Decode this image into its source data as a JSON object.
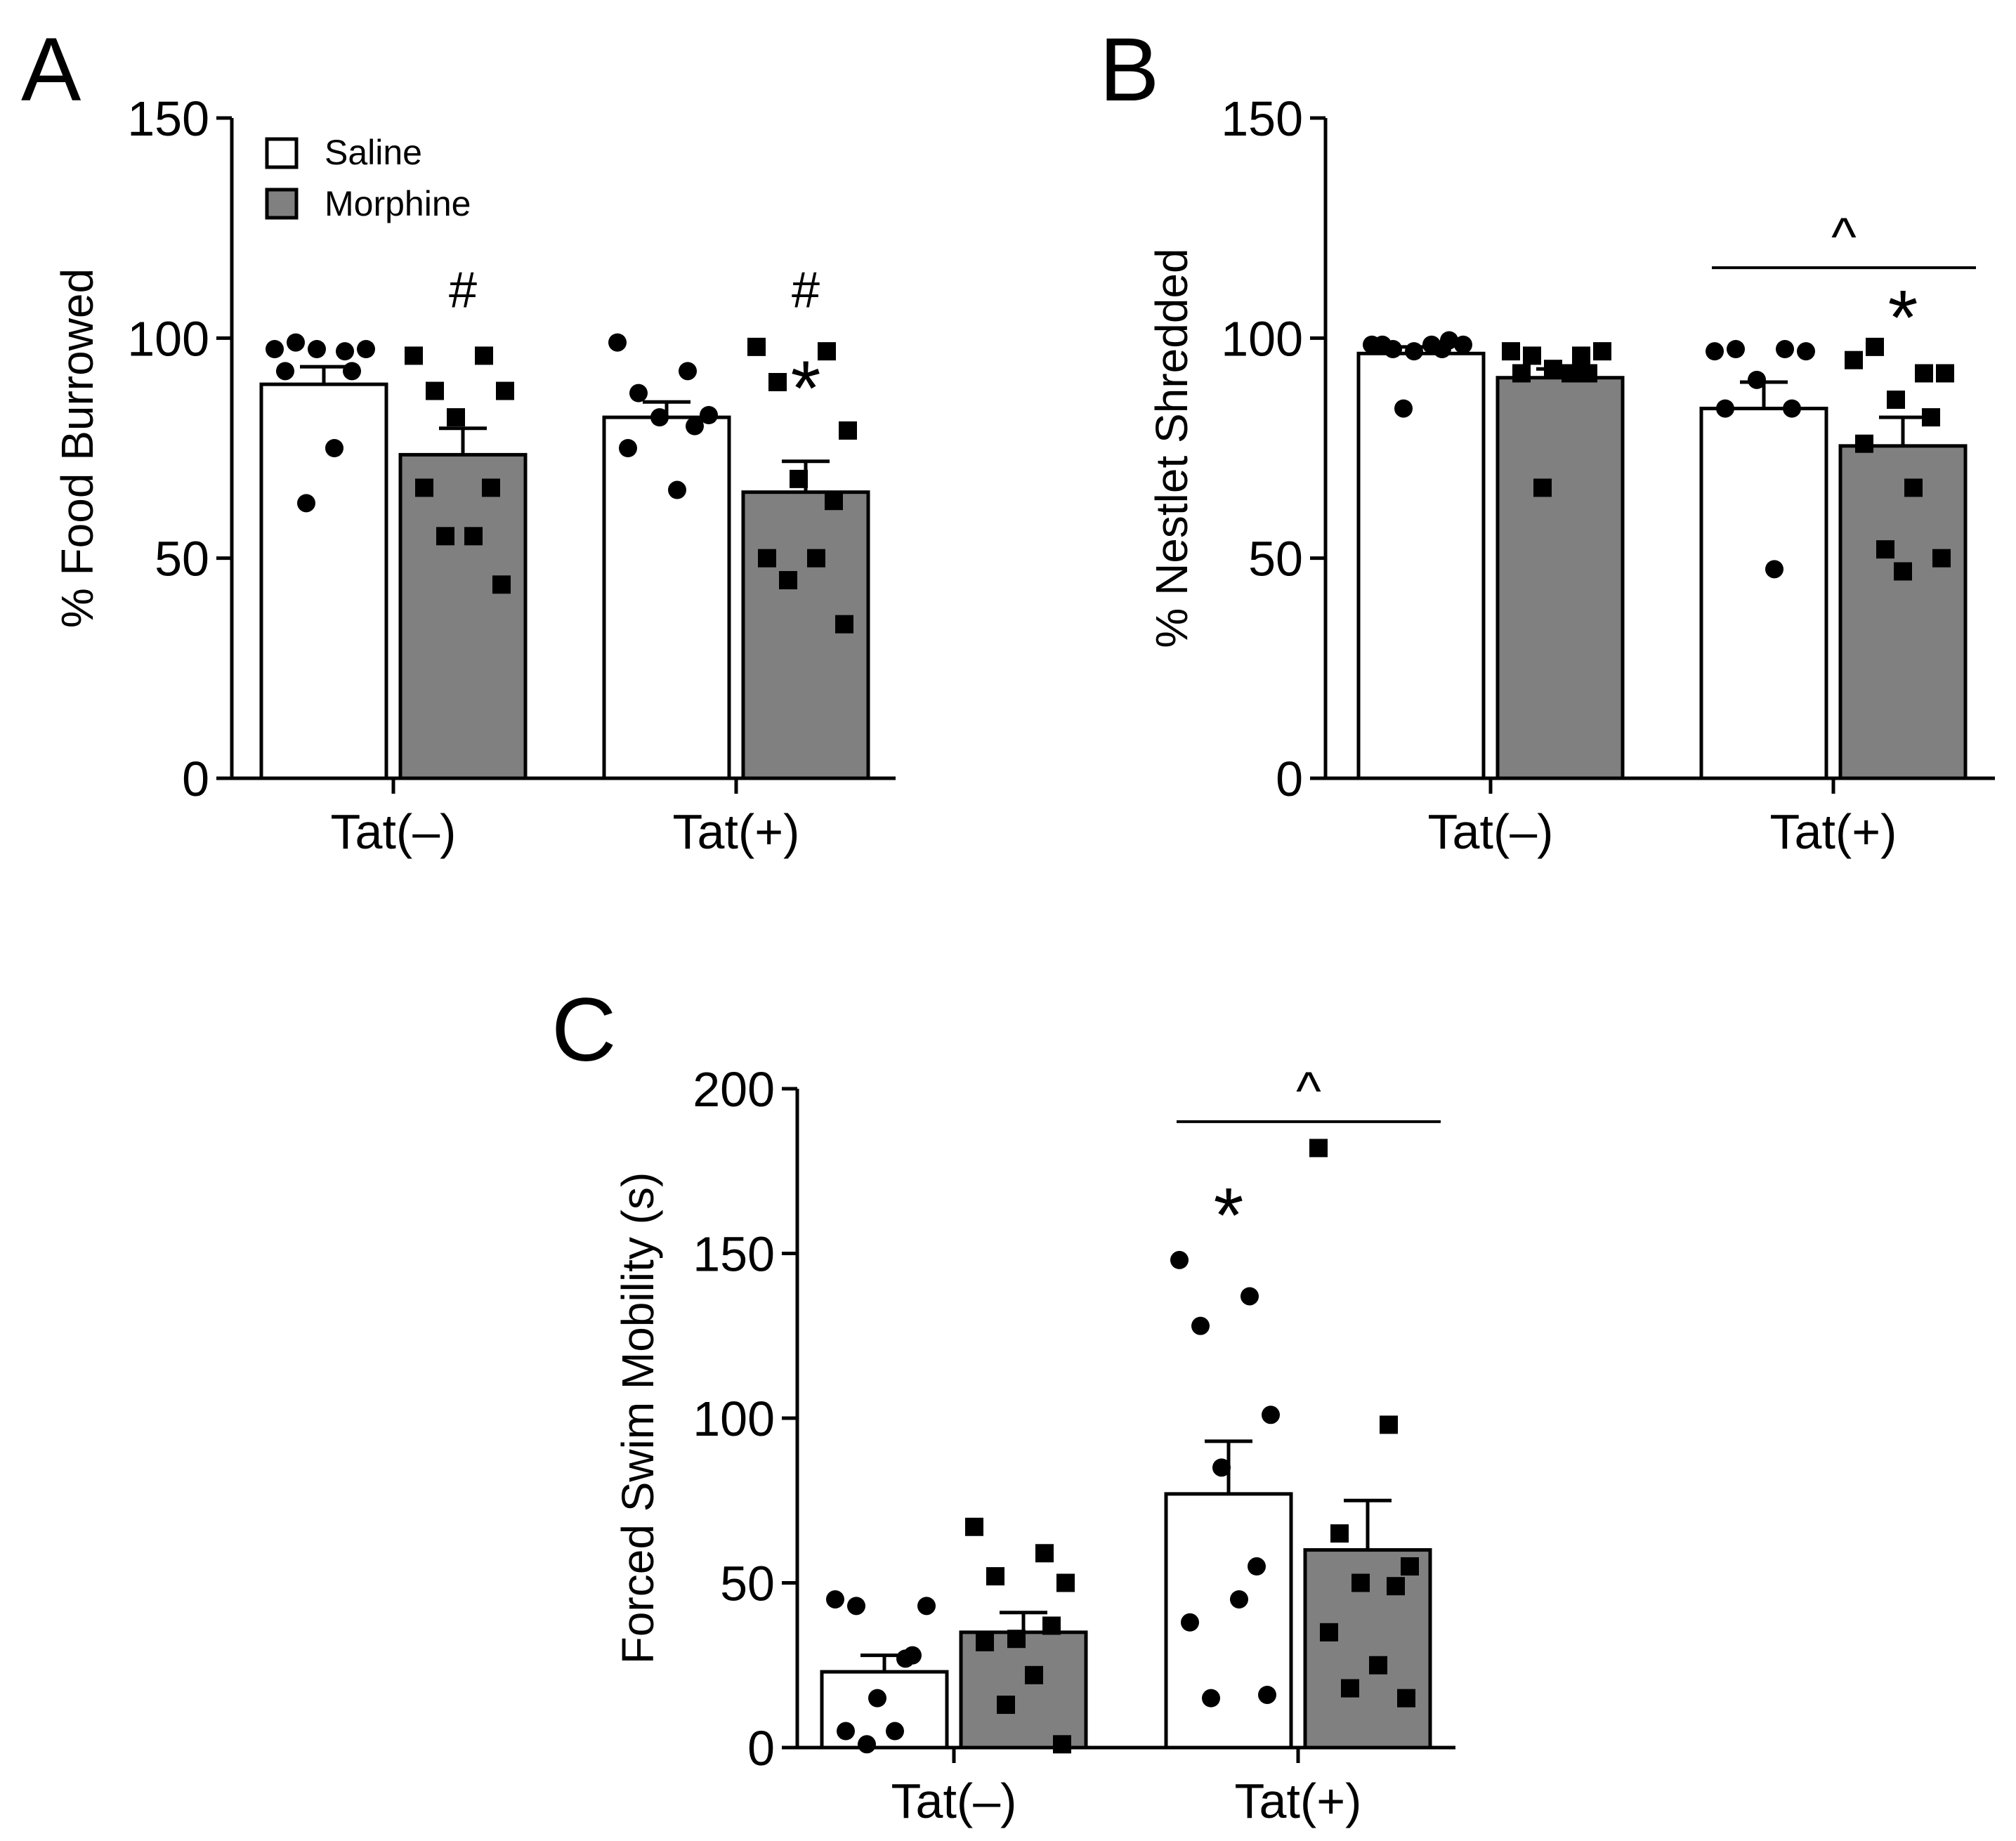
{
  "figure": {
    "legend": {
      "items": [
        {
          "label": "Saline",
          "color": "#ffffff"
        },
        {
          "label": "Morphine",
          "color": "#808080"
        }
      ]
    }
  },
  "chart_data": [
    {
      "id": "A",
      "type": "bar",
      "panel_label": "A",
      "ylabel": "% Food Burrowed",
      "xlabel": "",
      "ylim": [
        0,
        150
      ],
      "yticks": [
        0,
        50,
        100,
        150
      ],
      "categories": [
        "Tat(–)",
        "Tat(+)"
      ],
      "series": [
        {
          "name": "Saline",
          "color": "#ffffff",
          "marker": "circle",
          "values": [
            89.5,
            82
          ],
          "sem": [
            4,
            3.5
          ],
          "points": [
            [
              97.5,
              97,
              99,
              97.5,
              97.5,
              92.5,
              92.5,
              75,
              62.5
            ],
            [
              99,
              92.5,
              87.5,
              82.5,
              82,
              80,
              75,
              65.5
            ]
          ]
        },
        {
          "name": "Morphine",
          "color": "#808080",
          "marker": "square",
          "values": [
            73.5,
            65
          ],
          "sem": [
            6,
            7
          ],
          "points": [
            [
              96,
              96,
              88,
              88,
              82,
              66,
              66,
              55,
              55,
              44
            ],
            [
              98,
              97,
              90,
              79,
              68,
              63,
              50,
              50,
              45,
              35
            ]
          ]
        }
      ],
      "annotations": [
        {
          "text": "#",
          "kind": "hash",
          "category": 0,
          "series": 1,
          "y": 107
        },
        {
          "text": "#",
          "kind": "hash",
          "category": 1,
          "series": 1,
          "y": 107
        },
        {
          "text": "*",
          "kind": "star",
          "category": 1,
          "series": 1,
          "y": 89
        }
      ],
      "brackets": []
    },
    {
      "id": "B",
      "type": "bar",
      "panel_label": "B",
      "ylabel": "% Nestlet  Shredded",
      "xlabel": "",
      "ylim": [
        0,
        150
      ],
      "yticks": [
        0,
        50,
        100,
        150
      ],
      "categories": [
        "Tat(–)",
        "Tat(+)"
      ],
      "series": [
        {
          "name": "Saline",
          "color": "#ffffff",
          "marker": "circle",
          "values": [
            96.5,
            84
          ],
          "sem": [
            1.5,
            6
          ],
          "points": [
            [
              98.5,
              97.5,
              97.5,
              98.5,
              97,
              99.5,
              98.5,
              98.5,
              84
            ],
            [
              97,
              97.5,
              97.5,
              97,
              90.5,
              84,
              84,
              47.5
            ]
          ]
        },
        {
          "name": "Morphine",
          "color": "#808080",
          "marker": "square",
          "values": [
            91,
            75.5
          ],
          "sem": [
            2,
            6.5
          ],
          "points": [
            [
              97,
              96,
              96,
              97,
              93,
              92,
              92,
              92,
              66
            ],
            [
              95,
              92,
              98,
              92,
              86,
              82,
              76,
              66,
              52,
              50,
              47
            ]
          ]
        }
      ],
      "annotations": [
        {
          "text": "*",
          "kind": "star",
          "category": 1,
          "series": 1,
          "y": 105
        }
      ],
      "brackets": [
        {
          "from_category": 1,
          "text": "^",
          "y": 116
        }
      ]
    },
    {
      "id": "C",
      "type": "bar",
      "panel_label": "C",
      "ylabel": "Forced  Swim Mobility (s)",
      "xlabel": "",
      "ylim": [
        0,
        200
      ],
      "yticks": [
        0,
        50,
        100,
        150,
        200
      ],
      "categories": [
        "Tat(–)",
        "Tat(+)"
      ],
      "series": [
        {
          "name": "Saline",
          "color": "#ffffff",
          "marker": "circle",
          "values": [
            23,
            77
          ],
          "sem": [
            5,
            16
          ],
          "points": [
            [
              45,
              27,
              43,
              43,
              15,
              28,
              5,
              5,
              1
            ],
            [
              148,
              137,
              128,
              101,
              85,
              55,
              38,
              45,
              15,
              16
            ]
          ]
        },
        {
          "name": "Morphine",
          "color": "#808080",
          "marker": "square",
          "values": [
            35,
            60
          ],
          "sem": [
            6,
            15
          ],
          "points": [
            [
              67,
              59,
              52,
              50,
              33,
              37,
              32,
              22,
              13,
              1
            ],
            [
              182,
              98,
              65,
              55,
              50,
              49,
              35,
              25,
              18,
              15
            ]
          ]
        }
      ],
      "annotations": [
        {
          "text": "*",
          "kind": "star",
          "category": 1,
          "series": 0,
          "y": 162
        }
      ],
      "brackets": [
        {
          "from_category": 1,
          "text": "^",
          "y": 190
        }
      ]
    }
  ]
}
